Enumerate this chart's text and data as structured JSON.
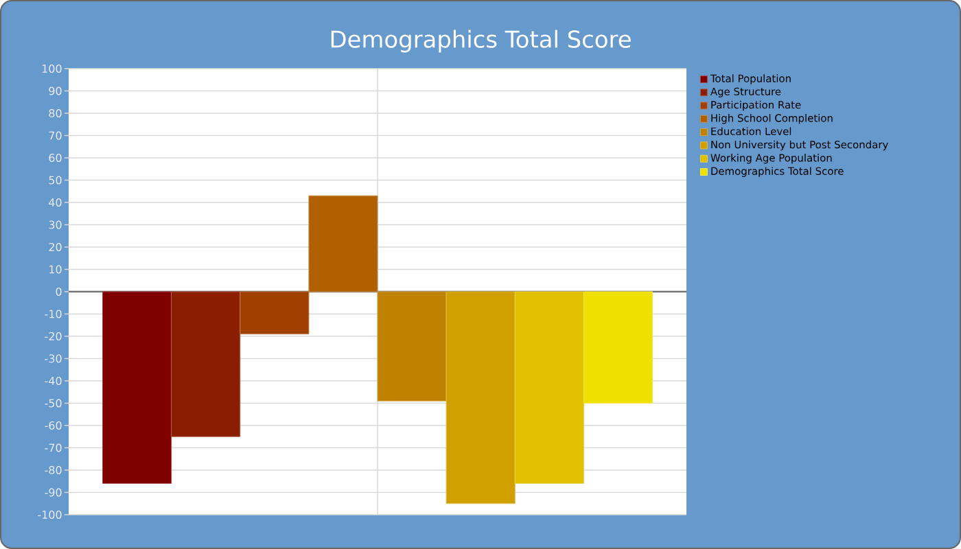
{
  "chart_data": {
    "type": "bar",
    "title": "Demographics Total Score",
    "categories": [
      null
    ],
    "series": [
      {
        "name": "Total Population",
        "color": "#800000",
        "values": [
          -86
        ]
      },
      {
        "name": "Age Structure",
        "color": "#8c1e00",
        "values": [
          -65
        ]
      },
      {
        "name": "Participation Rate",
        "color": "#a04000",
        "values": [
          -19
        ]
      },
      {
        "name": "High School Completion",
        "color": "#b06000",
        "values": [
          43
        ]
      },
      {
        "name": "Education Level",
        "color": "#c08000",
        "values": [
          -49
        ]
      },
      {
        "name": "Non University but Post Secondary",
        "color": "#d0a000",
        "values": [
          -95
        ]
      },
      {
        "name": "Working Age Population",
        "color": "#e0c000",
        "values": [
          -86
        ]
      },
      {
        "name": "Demographics Total Score",
        "color": "#f0e000",
        "values": [
          -50
        ]
      }
    ],
    "ylim": [
      -100,
      100
    ],
    "yticks": [
      100,
      90,
      80,
      70,
      60,
      50,
      40,
      30,
      20,
      10,
      0,
      -10,
      -20,
      -30,
      -40,
      -50,
      -60,
      -70,
      -80,
      -90,
      -100
    ],
    "grid": true,
    "legend": "top right"
  }
}
